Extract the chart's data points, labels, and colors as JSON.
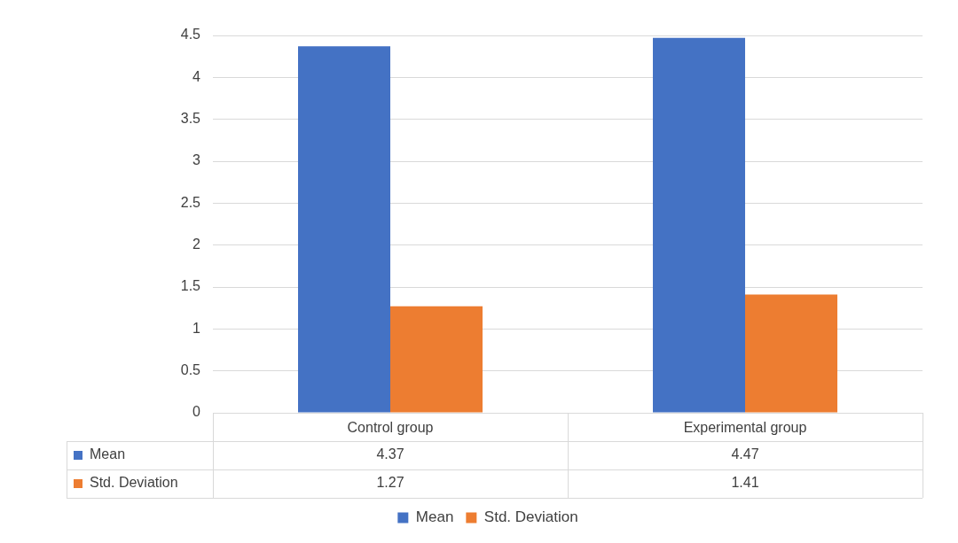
{
  "chart_data": {
    "type": "bar",
    "categories": [
      "Control group",
      "Experimental group"
    ],
    "series": [
      {
        "name": "Mean",
        "color": "#4472c4",
        "values": [
          4.37,
          4.47
        ]
      },
      {
        "name": "Std. Deviation",
        "color": "#ed7d31",
        "values": [
          1.27,
          1.41
        ]
      }
    ],
    "ylim": [
      0,
      4.5
    ],
    "yticks": [
      0,
      0.5,
      1,
      1.5,
      2,
      2.5,
      3,
      3.5,
      4,
      4.5
    ],
    "grid": "y",
    "legend": "bottom",
    "data_labels": true
  }
}
